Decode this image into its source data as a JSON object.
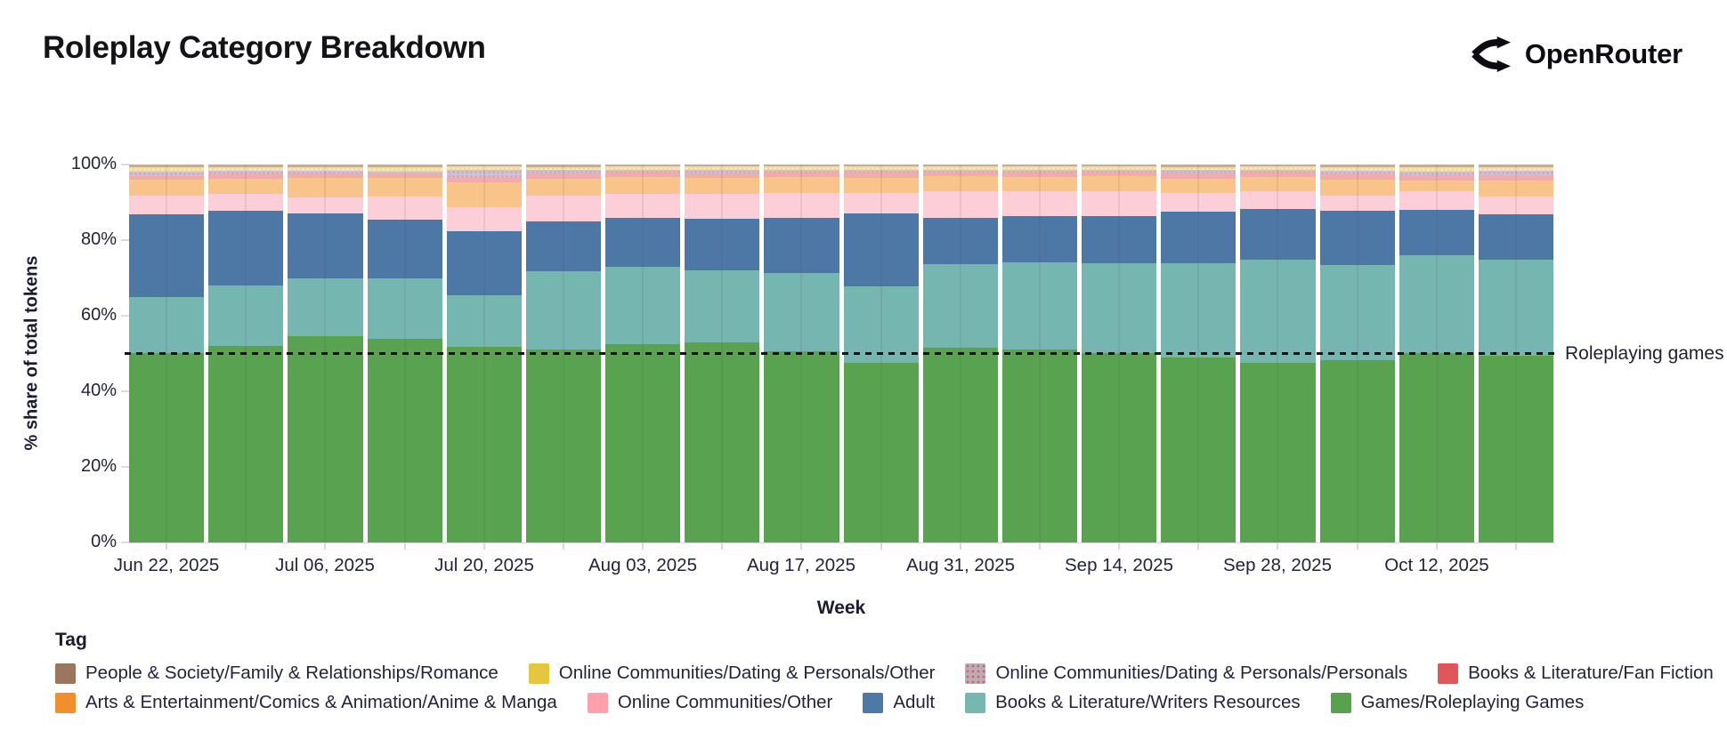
{
  "header": {
    "title": "Roleplay Category Breakdown",
    "brand": "OpenRouter"
  },
  "chart_data": {
    "type": "bar",
    "subtype": "100%-stacked-weekly-bars",
    "title": "Roleplay Category Breakdown",
    "xlabel": "Week",
    "ylabel": "% share of total tokens",
    "ylim": [
      0,
      100
    ],
    "y_ticks": [
      "0%",
      "20%",
      "40%",
      "60%",
      "80%",
      "100%"
    ],
    "bar_count": 18,
    "x_ticks": [
      {
        "bar": 0,
        "label": "Jun 22, 2025"
      },
      {
        "bar": 2,
        "label": "Jul 06, 2025"
      },
      {
        "bar": 4,
        "label": "Jul 20, 2025"
      },
      {
        "bar": 6,
        "label": "Aug 03, 2025"
      },
      {
        "bar": 8,
        "label": "Aug 17, 2025"
      },
      {
        "bar": 10,
        "label": "Aug 31, 2025"
      },
      {
        "bar": 12,
        "label": "Sep 14, 2025"
      },
      {
        "bar": 14,
        "label": "Sep 28, 2025"
      },
      {
        "bar": 16,
        "label": "Oct 12, 2025"
      }
    ],
    "annotation": {
      "label": "Roleplaying games",
      "y": 50,
      "style": "black-dashed-line"
    },
    "series": [
      {
        "name": "Games/Roleplaying Games",
        "bar_color": "#58a250",
        "legend_color": "#59a14f",
        "pattern": "none",
        "values": [
          50.2,
          52.0,
          54.5,
          54.0,
          51.8,
          51.0,
          52.5,
          53.0,
          50.6,
          47.5,
          51.6,
          51.0,
          50.2,
          49.0,
          47.5,
          48.2,
          50.2,
          49.3
        ]
      },
      {
        "name": "Books & Literature/Writers Resources",
        "bar_color": "#75b6b1",
        "legend_color": "#76b7b2",
        "pattern": "none",
        "values": [
          14.8,
          16.0,
          15.5,
          16.0,
          13.7,
          20.8,
          20.5,
          19.0,
          20.8,
          20.3,
          22.1,
          23.1,
          23.8,
          25.0,
          27.4,
          25.1,
          25.8,
          25.5
        ]
      },
      {
        "name": "Adult",
        "bar_color": "#4d78a6",
        "legend_color": "#4e79a7",
        "pattern": "none",
        "values": [
          21.9,
          19.8,
          17.0,
          15.3,
          16.9,
          13.2,
          12.9,
          13.7,
          14.6,
          19.2,
          12.3,
          12.2,
          12.3,
          13.5,
          13.3,
          14.4,
          12.0,
          12.1
        ]
      },
      {
        "name": "Online Communities/Other",
        "bar_color": "#fccfd8",
        "legend_color": "#ffa0ab",
        "pattern": "none",
        "values": [
          4.9,
          4.4,
          4.4,
          6.3,
          6.4,
          6.8,
          6.3,
          6.5,
          6.5,
          5.4,
          7.0,
          6.7,
          6.7,
          5.0,
          4.8,
          4.1,
          5.0,
          4.7
        ]
      },
      {
        "name": "Arts & Entertainment/Comics & Animation/Anime & Manga",
        "bar_color": "#f9c489",
        "legend_color": "#f28e2b",
        "pattern": "none",
        "values": [
          4.3,
          4.1,
          5.1,
          4.9,
          6.5,
          4.5,
          4.4,
          4.3,
          4.1,
          4.1,
          3.9,
          3.6,
          3.9,
          3.8,
          3.6,
          4.3,
          2.8,
          4.1
        ]
      },
      {
        "name": "Books & Literature/Fan Fiction",
        "bar_color": "#f1abad",
        "legend_color": "#e15759",
        "pattern": "none",
        "values": [
          0.9,
          1.2,
          1.1,
          1.2,
          1.2,
          1.3,
          1.2,
          1.2,
          1.2,
          1.3,
          1.1,
          1.3,
          1.1,
          1.3,
          1.2,
          1.3,
          1.3,
          1.4
        ]
      },
      {
        "name": "Online Communities/Dating & Personals/Personals",
        "bar_color": "#cfc0d9",
        "legend_color": "#b9adbb",
        "pattern": "dots",
        "values": [
          1.2,
          0.8,
          0.7,
          0.5,
          2.2,
          0.9,
          0.8,
          0.9,
          0.8,
          0.8,
          0.7,
          0.8,
          0.7,
          0.9,
          0.8,
          1.0,
          1.1,
          1.2
        ]
      },
      {
        "name": "Online Communities/Dating & Personals/Other",
        "bar_color": "#f0db9c",
        "legend_color": "#e4c73f",
        "pattern": "white-dots",
        "values": [
          1.2,
          1.1,
          1.1,
          1.2,
          0.8,
          0.9,
          0.9,
          0.9,
          0.9,
          0.9,
          0.8,
          0.8,
          0.8,
          0.9,
          0.9,
          1.0,
          1.1,
          1.0
        ]
      },
      {
        "name": "People & Society/Family & Relationships/Romance",
        "bar_color": "#c9ab93",
        "legend_color": "#9c755f",
        "pattern": "none",
        "values": [
          0.6,
          0.6,
          0.6,
          0.6,
          0.5,
          0.6,
          0.5,
          0.5,
          0.5,
          0.5,
          0.5,
          0.5,
          0.5,
          0.6,
          0.5,
          0.6,
          0.7,
          0.7
        ]
      }
    ]
  },
  "legend": {
    "title": "Tag",
    "rows": [
      [
        {
          "label": "People & Society/Family & Relationships/Romance",
          "color": "#9c755f",
          "pattern": "none"
        },
        {
          "label": "Online Communities/Dating & Personals/Other",
          "color": "#e4c73f",
          "pattern": "none"
        },
        {
          "label": "Online Communities/Dating & Personals/Personals",
          "color": "#b9adbb",
          "pattern": "dots"
        },
        {
          "label": "Books & Literature/Fan Fiction",
          "color": "#e15759",
          "pattern": "none"
        }
      ],
      [
        {
          "label": "Arts & Entertainment/Comics & Animation/Anime & Manga",
          "color": "#f28e2b",
          "pattern": "none"
        },
        {
          "label": "Online Communities/Other",
          "color": "#ffa0ab",
          "pattern": "none"
        },
        {
          "label": "Adult",
          "color": "#4e79a7",
          "pattern": "none"
        },
        {
          "label": "Books & Literature/Writers Resources",
          "color": "#76b7b2",
          "pattern": "none"
        },
        {
          "label": "Games/Roleplaying Games",
          "color": "#59a14f",
          "pattern": "none"
        }
      ]
    ]
  }
}
